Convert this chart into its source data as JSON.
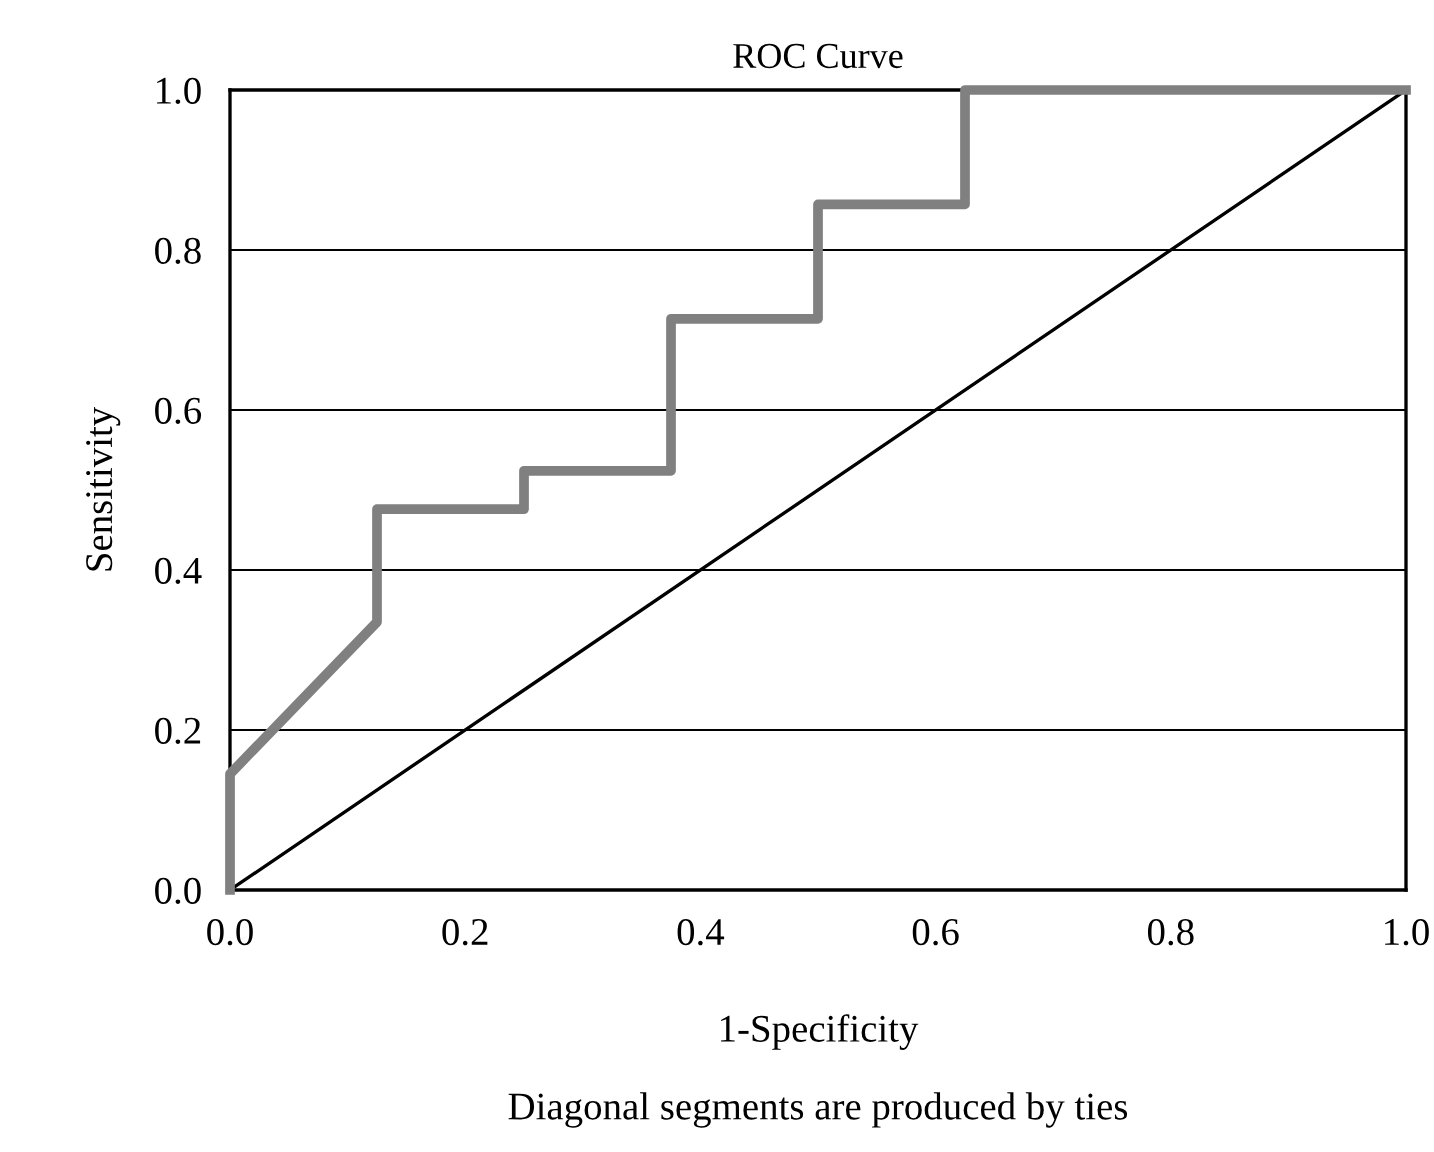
{
  "chart_data": {
    "type": "line",
    "title": "ROC Curve",
    "xlabel": "1-Specificity",
    "ylabel": "Sensitivity",
    "annotations": [
      "Diagonal segments are produced by ties"
    ],
    "series": [
      {
        "color": "#808080",
        "x": [
          0.0,
          0.0,
          0.125,
          0.125,
          0.25,
          0.25,
          0.375,
          0.375,
          0.5,
          0.5,
          0.625,
          0.625,
          1.0
        ],
        "values": [
          0.0,
          0.145,
          0.335,
          0.476,
          0.476,
          0.524,
          0.524,
          0.714,
          0.714,
          0.857,
          0.857,
          1.0,
          1.0
        ]
      },
      {
        "color": "#000000",
        "x": [
          0.0,
          1.0
        ],
        "values": [
          0.0,
          1.0
        ]
      }
    ],
    "xlim": [
      0.0,
      1.0
    ],
    "ylim": [
      0.0,
      1.0
    ],
    "xticks": [
      {
        "value": 0,
        "label": "0.0"
      },
      0.2,
      0.4,
      0.6,
      0.8,
      {
        "value": 1,
        "label": "1.0"
      }
    ],
    "yticks": [
      {
        "value": 0,
        "label": "0.0"
      },
      0.2,
      0.4,
      0.6,
      0.8,
      {
        "value": 1,
        "label": "1.0"
      }
    ],
    "grid": "y",
    "marker": "none",
    "line_style": "solid"
  }
}
